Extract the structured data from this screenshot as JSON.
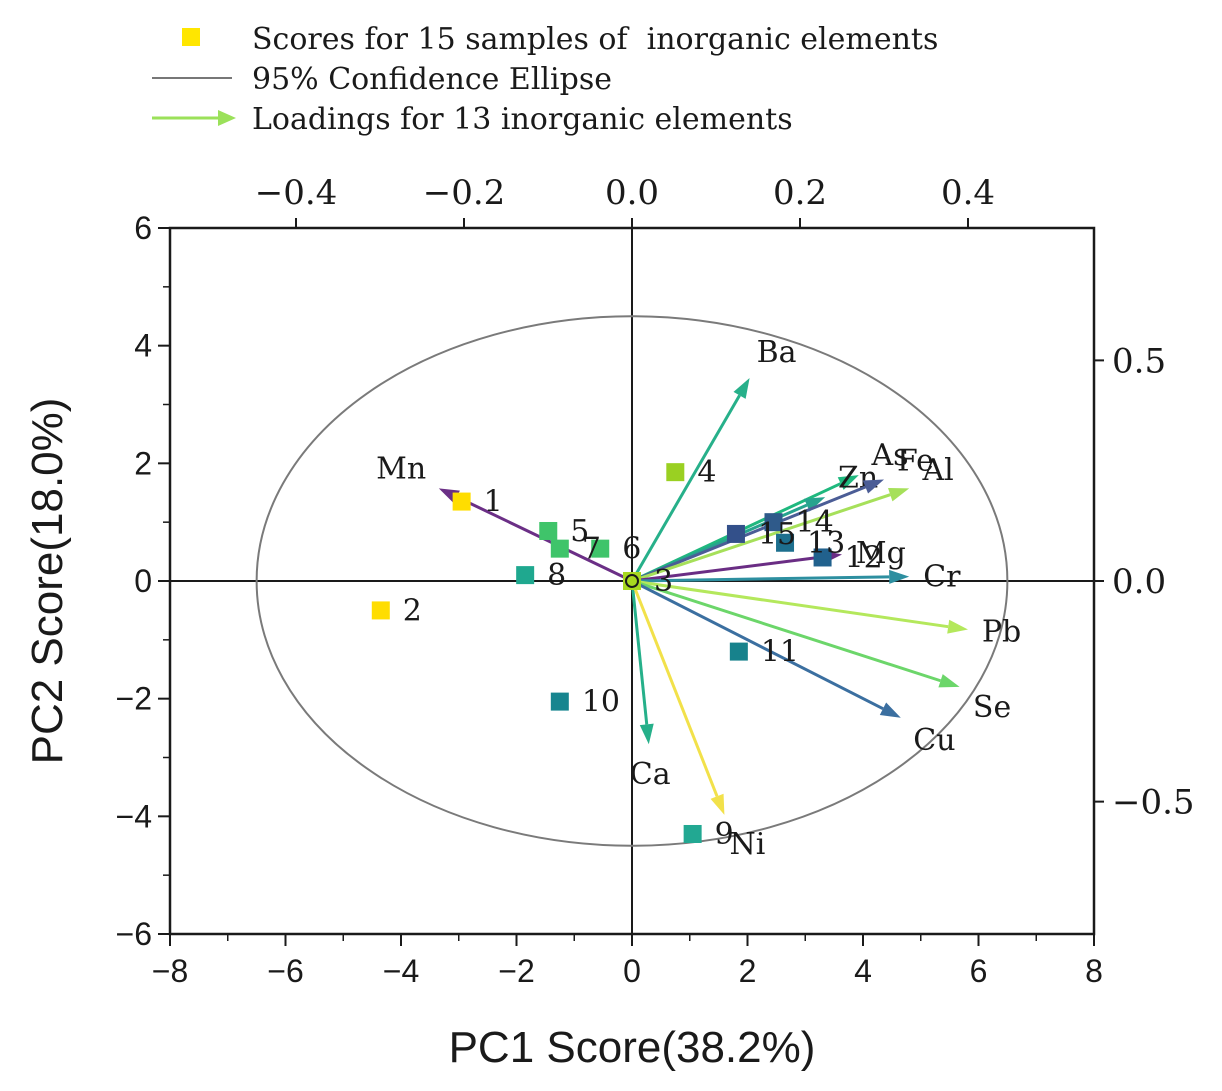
{
  "chart_data": {
    "type": "scatter",
    "subtype": "PCA biplot",
    "legend": {
      "placement": "top-left",
      "entries": [
        {
          "key": "scores",
          "label": "Scores for 15 samples of  inorganic elements",
          "symbol": "square",
          "color": "#ffe600"
        },
        {
          "key": "ellipse",
          "label": "95% Confidence Ellipse",
          "symbol": "line",
          "color": "#777777"
        },
        {
          "key": "loadings",
          "label": "Loadings for 13 inorganic elements",
          "symbol": "arrow",
          "color": "#9be15a"
        }
      ]
    },
    "axes": {
      "bottom": {
        "label": "PC1 Score(38.2%)",
        "range": [
          -8,
          8
        ],
        "ticks": [
          "-8",
          "-6",
          "-4",
          "-2",
          "0",
          "2",
          "4",
          "6",
          "8"
        ]
      },
      "left": {
        "label": "PC2 Score(18.0%)",
        "range": [
          -6,
          6
        ],
        "ticks": [
          "-6",
          "-4",
          "-2",
          "0",
          "2",
          "4",
          "6"
        ]
      },
      "top": {
        "label": "",
        "range": [
          -0.55,
          0.55
        ],
        "ticks": [
          "-0.4",
          "-0.2",
          "0.0",
          "0.2",
          "0.4"
        ],
        "tick_values": [
          -0.4,
          -0.2,
          0.0,
          0.2,
          0.4
        ]
      },
      "right": {
        "label": "",
        "range": [
          -0.8,
          0.8
        ],
        "ticks": [
          "0.5",
          "0.0",
          "-0.5"
        ],
        "tick_values": [
          0.5,
          0.0,
          -0.5
        ]
      },
      "grid": false
    },
    "ellipse": {
      "center": [
        0,
        0
      ],
      "rx_pc1": 6.5,
      "ry_pc2": 4.5
    },
    "scores": [
      {
        "id": "1",
        "pc1": -2.95,
        "pc2": 1.35,
        "color": "#ffdd00"
      },
      {
        "id": "2",
        "pc1": -4.35,
        "pc2": -0.5,
        "color": "#ffdd00"
      },
      {
        "id": "3",
        "pc1": 0.0,
        "pc2": 0.0,
        "color": "#a8d820"
      },
      {
        "id": "4",
        "pc1": 0.75,
        "pc2": 1.85,
        "color": "#9ad022"
      },
      {
        "id": "5",
        "pc1": -1.45,
        "pc2": 0.85,
        "color": "#3fc46a"
      },
      {
        "id": "6",
        "pc1": -0.55,
        "pc2": 0.55,
        "color": "#3fc46a"
      },
      {
        "id": "7",
        "pc1": -1.25,
        "pc2": 0.55,
        "color": "#3fc46a"
      },
      {
        "id": "8",
        "pc1": -1.85,
        "pc2": 0.1,
        "color": "#1fa88f"
      },
      {
        "id": "9",
        "pc1": 1.05,
        "pc2": -4.3,
        "color": "#22a892"
      },
      {
        "id": "10",
        "pc1": -1.25,
        "pc2": -2.05,
        "color": "#17858f"
      },
      {
        "id": "11",
        "pc1": 1.85,
        "pc2": -1.2,
        "color": "#17828c"
      },
      {
        "id": "12",
        "pc1": 3.3,
        "pc2": 0.4,
        "color": "#21618d"
      },
      {
        "id": "13",
        "pc1": 2.65,
        "pc2": 0.65,
        "color": "#1d6f8e"
      },
      {
        "id": "14",
        "pc1": 2.45,
        "pc2": 1.0,
        "color": "#2f5a8a"
      },
      {
        "id": "15",
        "pc1": 1.8,
        "pc2": 0.8,
        "color": "#33508a"
      }
    ],
    "loadings": [
      {
        "element": "Mn",
        "pc1": -0.23,
        "pc2": 0.21,
        "color": "#6b2f86"
      },
      {
        "element": "Ba",
        "pc1": 0.14,
        "pc2": 0.46,
        "color": "#27b08a"
      },
      {
        "element": "As",
        "pc1": 0.27,
        "pc2": 0.24,
        "color": "#1fb87e"
      },
      {
        "element": "Zn",
        "pc1": 0.23,
        "pc2": 0.19,
        "color": "#27a38e"
      },
      {
        "element": "Fe",
        "pc1": 0.3,
        "pc2": 0.23,
        "color": "#4b5d96"
      },
      {
        "element": "Al",
        "pc1": 0.33,
        "pc2": 0.21,
        "color": "#a6e05a"
      },
      {
        "element": "Mg",
        "pc1": 0.25,
        "pc2": 0.06,
        "color": "#6a2d84"
      },
      {
        "element": "Cr",
        "pc1": 0.33,
        "pc2": 0.01,
        "color": "#2d8fa0"
      },
      {
        "element": "Pb",
        "pc1": 0.4,
        "pc2": -0.11,
        "color": "#b4e85c"
      },
      {
        "element": "Se",
        "pc1": 0.39,
        "pc2": -0.24,
        "color": "#6cd66a"
      },
      {
        "element": "Cu",
        "pc1": 0.32,
        "pc2": -0.31,
        "color": "#3b6fa0"
      },
      {
        "element": "Ca",
        "pc1": 0.02,
        "pc2": -0.37,
        "color": "#26b08a"
      },
      {
        "element": "Ni",
        "pc1": 0.11,
        "pc2": -0.53,
        "color": "#f2e14a"
      }
    ]
  }
}
